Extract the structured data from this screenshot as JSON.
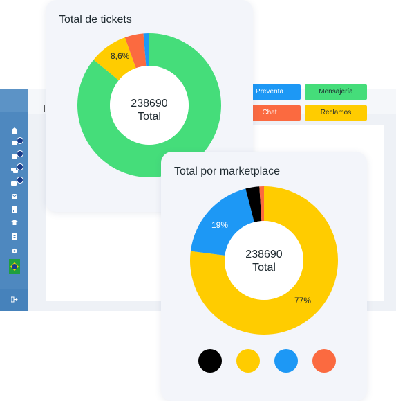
{
  "legend": {
    "preventa": "Preventa",
    "mensajeria": "Mensajería",
    "chat": "Chat",
    "reclamos": "Reclamos"
  },
  "colors": {
    "preventa": "#1d98f5",
    "mensajeria": "#45dd7a",
    "chat": "#fb6a40",
    "reclamos": "#ffcc00",
    "black": "#000000"
  },
  "sidebar": {
    "icons": [
      "home-icon",
      "chat-icon",
      "messages-icon",
      "chat-bubbles-icon",
      "mail-icon",
      "chart-icon",
      "graduation-icon",
      "document-icon",
      "gear-icon",
      "brazil-flag-icon",
      "logout-icon"
    ]
  },
  "tickets_card": {
    "title": "Total de tickets",
    "total": "238690",
    "total_label": "Total",
    "slice_label": "8,6%"
  },
  "marketplace_card": {
    "title": "Total por marketplace",
    "total": "238690",
    "total_label": "Total",
    "label_blue": "19%",
    "label_yellow": "77%"
  },
  "chart_data": [
    {
      "type": "pie",
      "title": "Total de tickets",
      "categories": [
        "Mensajería",
        "Reclamos",
        "Chat",
        "Preventa"
      ],
      "values": [
        85.9,
        8.6,
        4.2,
        1.3
      ],
      "colors": [
        "#45dd7a",
        "#ffcc00",
        "#fb6a40",
        "#1d98f5"
      ],
      "center": "238690 Total",
      "legend": "top-right"
    },
    {
      "type": "pie",
      "title": "Total por marketplace",
      "values": [
        77,
        19,
        3,
        1
      ],
      "colors": [
        "#ffcc00",
        "#1d98f5",
        "#000000",
        "#fb6a40"
      ],
      "center": "238690 Total",
      "legend": "bottom"
    }
  ]
}
